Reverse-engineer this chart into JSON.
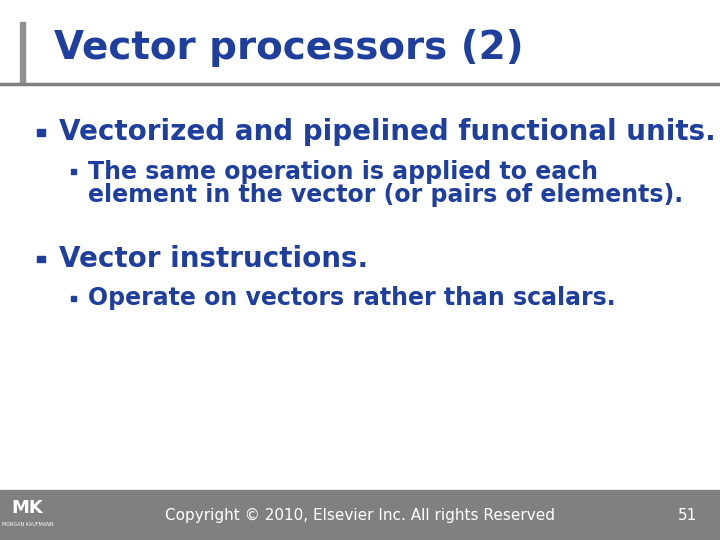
{
  "title": "Vector processors (2)",
  "title_color": "#1F3F9F",
  "title_fontsize": 28,
  "background_color": "#FFFFFF",
  "footer_bg_color": "#808080",
  "footer_text": "Copyright © 2010, Elsevier Inc. All rights Reserved",
  "footer_number": "51",
  "footer_fontsize": 11,
  "accent_bar_color": "#808080",
  "bullet_color": "#1F3F9F",
  "text_color": "#1F3F9F",
  "bullet1_text": "Vectorized and pipelined functional units.",
  "bullet1_fontsize": 20,
  "sub_bullet1_line1": "The same operation is applied to each",
  "sub_bullet1_line2": "element in the vector (or pairs of elements).",
  "sub_bullet1_fontsize": 17,
  "bullet2_text": "Vector instructions.",
  "bullet2_fontsize": 20,
  "sub_bullet2_text": "Operate on vectors rather than scalars.",
  "sub_bullet2_fontsize": 17,
  "left_bar_color": "#909090",
  "left_bar_width": 0.007
}
